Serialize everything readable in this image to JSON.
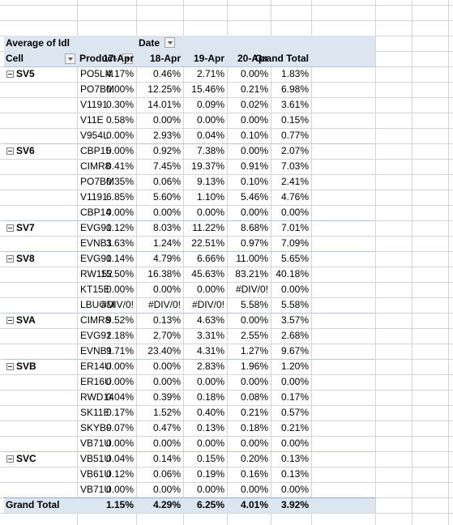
{
  "header": {
    "value_label": "Average of Idl",
    "column_label": "Date",
    "row_labels": [
      "Cell",
      "Product"
    ],
    "columns": [
      "17-Apr",
      "18-Apr",
      "19-Apr",
      "20-Apr",
      "Grand Total"
    ]
  },
  "groups": [
    {
      "cell": "SV5",
      "rows": [
        {
          "product": "PO5LM",
          "values": [
            "4.17%",
            "0.46%",
            "2.71%",
            "0.00%",
            "1.83%"
          ]
        },
        {
          "product": "PO7BM",
          "values": [
            "0.00%",
            "12.25%",
            "15.46%",
            "0.21%",
            "6.98%"
          ]
        },
        {
          "product": "V1191",
          "values": [
            "0.30%",
            "14.01%",
            "0.09%",
            "0.02%",
            "3.61%"
          ]
        },
        {
          "product": "V11E",
          "values": [
            "0.58%",
            "0.00%",
            "0.00%",
            "0.00%",
            "0.15%"
          ]
        },
        {
          "product": "V954L",
          "values": [
            "0.00%",
            "2.93%",
            "0.04%",
            "0.10%",
            "0.77%"
          ]
        }
      ]
    },
    {
      "cell": "SV6",
      "rows": [
        {
          "product": "CBP15",
          "values": [
            "0.00%",
            "0.92%",
            "7.38%",
            "0.00%",
            "2.07%"
          ]
        },
        {
          "product": "CIMR8",
          "values": [
            "0.41%",
            "7.45%",
            "19.37%",
            "0.91%",
            "7.03%"
          ]
        },
        {
          "product": "PO7BM",
          "values": [
            "0.35%",
            "0.06%",
            "9.13%",
            "0.10%",
            "2.41%"
          ]
        },
        {
          "product": "V1191",
          "values": [
            "6.85%",
            "5.60%",
            "1.10%",
            "5.46%",
            "4.76%"
          ]
        },
        {
          "product": "CBP14",
          "values": [
            "0.00%",
            "0.00%",
            "0.00%",
            "0.00%",
            "0.00%"
          ]
        }
      ]
    },
    {
      "cell": "SV7",
      "rows": [
        {
          "product": "EVG91",
          "values": [
            "0.12%",
            "8.03%",
            "11.22%",
            "8.68%",
            "7.01%"
          ]
        },
        {
          "product": "EVNB1",
          "values": [
            "3.63%",
            "1.24%",
            "22.51%",
            "0.97%",
            "7.09%"
          ]
        }
      ]
    },
    {
      "cell": "SV8",
      "rows": [
        {
          "product": "EVG91",
          "values": [
            "0.14%",
            "4.79%",
            "6.66%",
            "11.00%",
            "5.65%"
          ]
        },
        {
          "product": "RW152",
          "values": [
            "15.50%",
            "16.38%",
            "45.63%",
            "83.21%",
            "40.18%"
          ]
        },
        {
          "product": "KT15E",
          "values": [
            "0.00%",
            "0.00%",
            "0.00%",
            "#DIV/0!",
            "0.00%"
          ]
        },
        {
          "product": "LBUGM",
          "values": [
            "#DIV/0!",
            "#DIV/0!",
            "#DIV/0!",
            "5.58%",
            "5.58%"
          ]
        }
      ]
    },
    {
      "cell": "SVA",
      "rows": [
        {
          "product": "CIMR8",
          "values": [
            "9.52%",
            "0.13%",
            "4.63%",
            "0.00%",
            "3.57%"
          ]
        },
        {
          "product": "EVG91",
          "values": [
            "2.18%",
            "2.70%",
            "3.31%",
            "2.55%",
            "2.68%"
          ]
        },
        {
          "product": "EVNB1",
          "values": [
            "9.71%",
            "23.40%",
            "4.31%",
            "1.27%",
            "9.67%"
          ]
        }
      ]
    },
    {
      "cell": "SVB",
      "rows": [
        {
          "product": "ER14U",
          "values": [
            "0.00%",
            "0.00%",
            "2.83%",
            "1.96%",
            "1.20%"
          ]
        },
        {
          "product": "ER16U",
          "values": [
            "0.00%",
            "0.00%",
            "0.00%",
            "0.00%",
            "0.00%"
          ]
        },
        {
          "product": "RWD14",
          "values": [
            "0.04%",
            "0.39%",
            "0.18%",
            "0.08%",
            "0.17%"
          ]
        },
        {
          "product": "SK11E",
          "values": [
            "0.17%",
            "1.52%",
            "0.40%",
            "0.21%",
            "0.57%"
          ]
        },
        {
          "product": "SKYB9",
          "values": [
            "0.07%",
            "0.47%",
            "0.13%",
            "0.18%",
            "0.21%"
          ]
        },
        {
          "product": "VB71U",
          "values": [
            "0.00%",
            "0.00%",
            "0.00%",
            "0.00%",
            "0.00%"
          ]
        }
      ]
    },
    {
      "cell": "SVC",
      "rows": [
        {
          "product": "VB51U",
          "values": [
            "0.04%",
            "0.14%",
            "0.15%",
            "0.20%",
            "0.13%"
          ]
        },
        {
          "product": "VB61U",
          "values": [
            "0.12%",
            "0.06%",
            "0.19%",
            "0.16%",
            "0.13%"
          ]
        },
        {
          "product": "VB71U",
          "values": [
            "0.00%",
            "0.00%",
            "0.00%",
            "0.00%",
            "0.00%"
          ]
        }
      ]
    }
  ],
  "grand_total": {
    "label": "Grand Total",
    "values": [
      "1.15%",
      "4.29%",
      "6.25%",
      "4.01%",
      "3.92%"
    ]
  }
}
